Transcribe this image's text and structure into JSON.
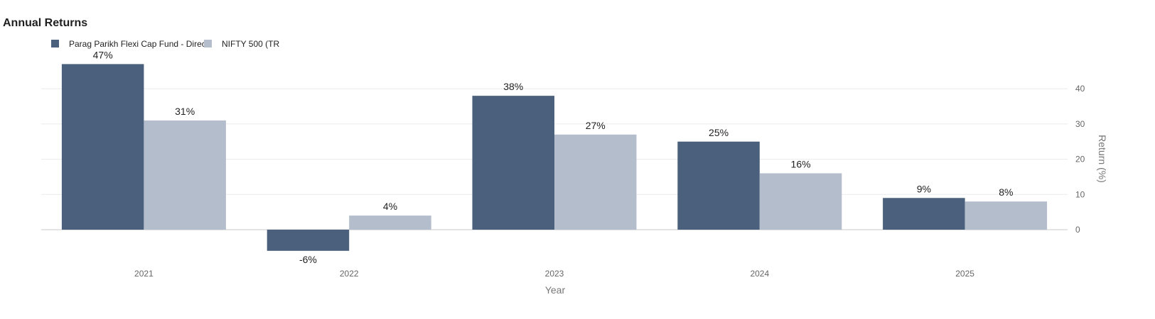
{
  "page_title": "Annual Returns",
  "chart_data": {
    "type": "bar",
    "title": "Annual Returns",
    "categories": [
      "2021",
      "2022",
      "2023",
      "2024",
      "2025"
    ],
    "series": [
      {
        "name": "Parag Parikh Flexi Cap Fund - Direct",
        "color": "#4a607c",
        "values": [
          47,
          -6,
          38,
          25,
          9
        ],
        "labels": [
          "47%",
          "-6%",
          "38%",
          "25%",
          "9%"
        ]
      },
      {
        "name": "NIFTY 500 (TR",
        "color": "#b4bdcb",
        "values": [
          31,
          4,
          27,
          16,
          8
        ],
        "labels": [
          "31%",
          "4%",
          "27%",
          "16%",
          "8%"
        ]
      }
    ],
    "xlabel": "Year",
    "ylabel": "Return (%)",
    "yticks": [
      "0",
      "10",
      "20",
      "30",
      "40"
    ],
    "ylim": [
      -9,
      47
    ],
    "grid": true,
    "legend": "top-left",
    "yaxis_side": "right"
  }
}
